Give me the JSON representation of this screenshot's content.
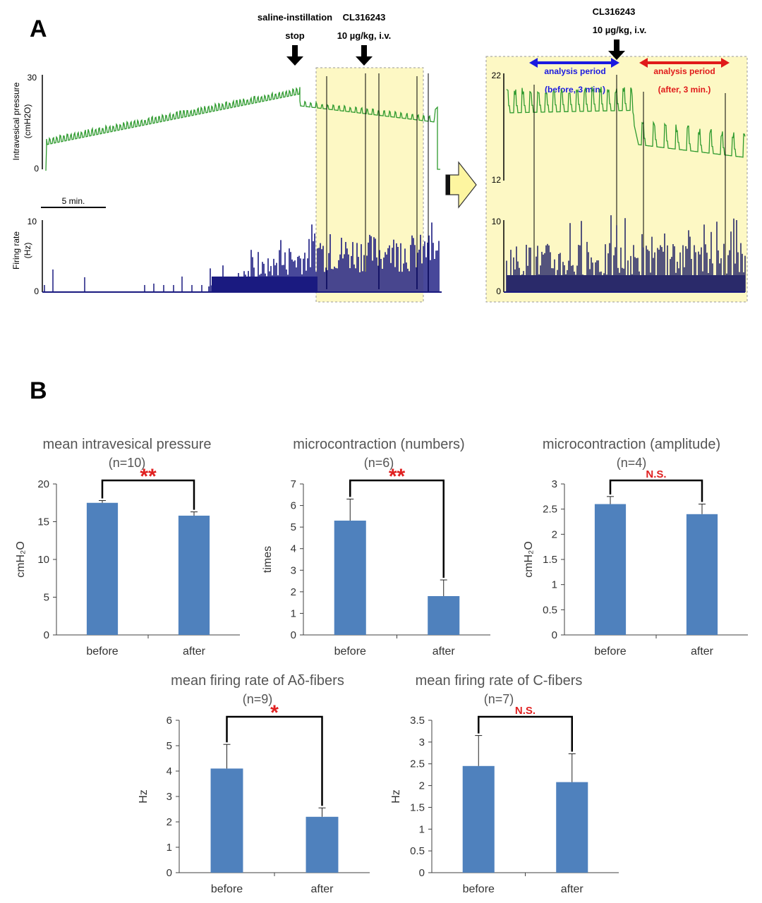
{
  "panel_a": {
    "label": "A",
    "saline_line1": "saline-instillation",
    "saline_line2": "stop",
    "drug_name": "CL316243",
    "drug_dose": "10 µg/kg, i.v.",
    "pressure_ylabel_line1": "Intravesical pressure",
    "pressure_ylabel_line2": "(cmH2O)",
    "pressure_top_tick": "30",
    "pressure_bottom_tick": "0",
    "scale_bar_label": "5 min.",
    "firing_ylabel_line1": "Firing rate",
    "firing_ylabel_line2": "(Hz)",
    "firing_top_tick": "10",
    "firing_bottom_tick": "0",
    "inset": {
      "drug_name": "CL316243",
      "drug_dose": "10 µg/kg, i.v.",
      "before_label_line1": "analysis period",
      "before_label_line2": "(before, 3 min.)",
      "after_label_line1": "analysis period",
      "after_label_line2": "(after, 3 min.)",
      "pressure_top_tick": "22",
      "pressure_bottom_tick": "12",
      "firing_top_tick": "10",
      "firing_bottom_tick": "0"
    },
    "colors": {
      "pressure_trace": "#2e9a2e",
      "firing_bars": "#1a1a80",
      "highlight": "#fdf8c4",
      "before_arrow": "#1a1ae0",
      "after_arrow": "#e01a1a"
    }
  },
  "panel_b_label": "B",
  "colors": {
    "bar": "#4f81bd",
    "significance": "#e02020",
    "axis": "#404040"
  },
  "chart_data": [
    {
      "type": "bar",
      "title": "mean intravesical pressure",
      "subtitle": "(n=10)",
      "ylabel": "cmH₂O",
      "categories": [
        "before",
        "after"
      ],
      "values": [
        17.5,
        15.8
      ],
      "errors": [
        0.3,
        0.5
      ],
      "ylim": [
        0,
        20
      ],
      "yticks": [
        "0",
        "5",
        "10",
        "15",
        "20"
      ],
      "significance": "**"
    },
    {
      "type": "bar",
      "title": "microcontraction (numbers)",
      "subtitle": "(n=6)",
      "ylabel": "times",
      "categories": [
        "before",
        "after"
      ],
      "values": [
        5.3,
        1.8
      ],
      "errors": [
        1.0,
        0.75
      ],
      "ylim": [
        0,
        7
      ],
      "yticks": [
        "0",
        "1",
        "2",
        "3",
        "4",
        "5",
        "6",
        "7"
      ],
      "significance": "**"
    },
    {
      "type": "bar",
      "title": "microcontraction (amplitude)",
      "subtitle": "(n=4)",
      "ylabel": "cmH₂O",
      "categories": [
        "before",
        "after"
      ],
      "values": [
        2.6,
        2.4
      ],
      "errors": [
        0.15,
        0.2
      ],
      "ylim": [
        0,
        3
      ],
      "yticks": [
        "0",
        "0.5",
        "1",
        "1.5",
        "2",
        "2.5",
        "3"
      ],
      "significance": "N.S."
    },
    {
      "type": "bar",
      "title": "mean firing rate of Aδ-fibers",
      "subtitle": "(n=9)",
      "ylabel": "Hz",
      "categories": [
        "before",
        "after"
      ],
      "values": [
        4.1,
        2.2
      ],
      "errors": [
        0.95,
        0.35
      ],
      "ylim": [
        0,
        6
      ],
      "yticks": [
        "0",
        "1",
        "2",
        "3",
        "4",
        "5",
        "6"
      ],
      "significance": "*"
    },
    {
      "type": "bar",
      "title": "mean firing rate of C-fibers",
      "subtitle": "(n=7)",
      "ylabel": "Hz",
      "categories": [
        "before",
        "after"
      ],
      "values": [
        2.45,
        2.08
      ],
      "errors": [
        0.7,
        0.65
      ],
      "ylim": [
        0,
        3.5
      ],
      "yticks": [
        "0",
        "0.5",
        "1",
        "1.5",
        "2",
        "2.5",
        "3",
        "3.5"
      ],
      "significance": "N.S."
    }
  ]
}
